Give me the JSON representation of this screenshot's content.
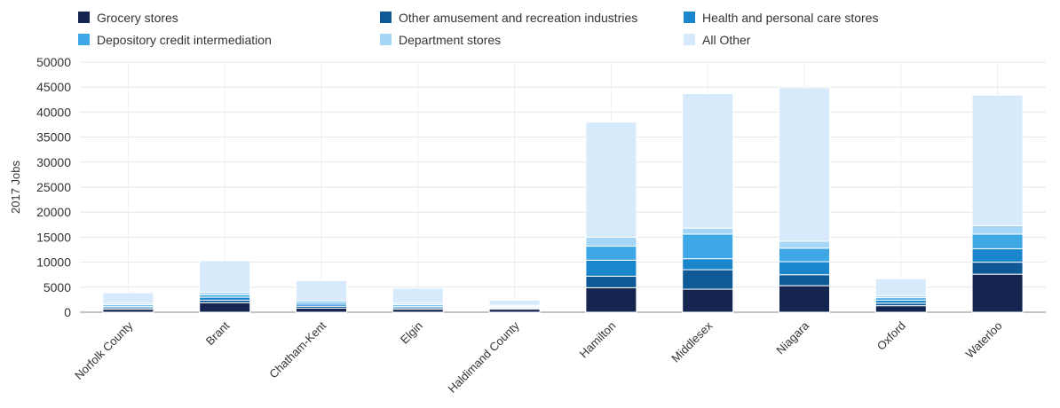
{
  "chart_data": {
    "type": "bar",
    "stacked": true,
    "title": "",
    "xlabel": "",
    "ylabel": "2017 Jobs",
    "ylim": [
      0,
      50000
    ],
    "yticks": [
      0,
      5000,
      10000,
      15000,
      20000,
      25000,
      30000,
      35000,
      40000,
      45000,
      50000
    ],
    "grid": true,
    "legend_position": "top",
    "categories": [
      "Norfolk County",
      "Brant",
      "Chatham-Kent",
      "Elgin",
      "Haldimand County",
      "Hamilton",
      "Middlesex",
      "Niagara",
      "Oxford",
      "Waterloo"
    ],
    "series": [
      {
        "name": "Grocery stores",
        "color": "#14264f",
        "values": [
          600,
          1900,
          800,
          600,
          600,
          4900,
          4600,
          5300,
          1300,
          7600
        ]
      },
      {
        "name": "Other amusement and recreation industries",
        "color": "#0f5997",
        "values": [
          300,
          500,
          400,
          300,
          200,
          2300,
          3900,
          2200,
          500,
          2400
        ]
      },
      {
        "name": "Health and personal care stores",
        "color": "#1a86cc",
        "values": [
          300,
          600,
          400,
          300,
          200,
          3200,
          2200,
          2600,
          600,
          2700
        ]
      },
      {
        "name": "Depository credit intermediation",
        "color": "#3ea8e6",
        "values": [
          300,
          500,
          400,
          300,
          200,
          2800,
          4900,
          2700,
          500,
          2900
        ]
      },
      {
        "name": "Department stores",
        "color": "#a6d6f6",
        "values": [
          300,
          500,
          400,
          300,
          200,
          1800,
          1200,
          1400,
          400,
          1700
        ]
      },
      {
        "name": "All Other",
        "color": "#d6eafb",
        "values": [
          2100,
          6300,
          3900,
          3000,
          1000,
          23000,
          26900,
          30700,
          3400,
          26100
        ]
      }
    ]
  }
}
